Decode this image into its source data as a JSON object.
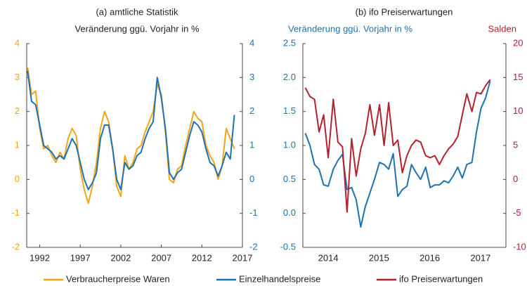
{
  "chart_data": [
    {
      "type": "line",
      "title": "(a) amtliche Statistik",
      "subtitle": "Veränderung ggü. Vorjahr in %",
      "x": [
        1990.5,
        1991,
        1991.5,
        1992,
        1992.5,
        1993,
        1993.5,
        1994,
        1994.5,
        1995,
        1995.5,
        1996,
        1996.5,
        1997,
        1997.5,
        1998,
        1998.5,
        1999,
        1999.5,
        2000,
        2000.5,
        2001,
        2001.5,
        2002,
        2002.5,
        2003,
        2003.5,
        2004,
        2004.5,
        2005,
        2005.5,
        2006,
        2006.5,
        2007,
        2007.5,
        2008,
        2008.5,
        2009,
        2009.5,
        2010,
        2010.5,
        2011,
        2011.5,
        2012,
        2012.5,
        2013,
        2013.5,
        2014,
        2014.5,
        2015,
        2015.5,
        2016
      ],
      "series": [
        {
          "name": "Verbraucherpreise Waren",
          "color": "#f2a516",
          "values": [
            3.3,
            2.5,
            2.6,
            1.5,
            0.9,
            1.0,
            0.7,
            0.5,
            0.8,
            0.6,
            1.2,
            1.5,
            1.3,
            0.3,
            -0.3,
            -0.7,
            -0.2,
            0.5,
            1.5,
            2.0,
            1.7,
            0.9,
            -0.2,
            -0.5,
            0.7,
            0.3,
            0.5,
            0.9,
            1.0,
            1.4,
            1.7,
            2.0,
            2.8,
            2.5,
            1.4,
            0.0,
            -0.1,
            0.3,
            0.4,
            1.0,
            1.5,
            2.0,
            1.8,
            1.7,
            1.0,
            0.7,
            0.5,
            0.0,
            0.4,
            1.5,
            1.2,
            0.9
          ]
        },
        {
          "name": "Einzelhandelspreise",
          "color": "#1f72b0",
          "axis": "y2",
          "values": [
            3.2,
            2.3,
            2.2,
            1.6,
            1.0,
            0.9,
            0.8,
            0.6,
            0.7,
            0.6,
            0.9,
            1.2,
            1.0,
            0.5,
            0.0,
            -0.3,
            -0.1,
            0.2,
            1.2,
            1.6,
            1.6,
            0.9,
            0.0,
            -0.3,
            0.5,
            0.3,
            0.4,
            0.7,
            0.8,
            1.2,
            1.5,
            1.7,
            3.0,
            2.4,
            1.5,
            0.2,
            0.0,
            0.2,
            0.3,
            0.8,
            1.3,
            1.7,
            1.6,
            1.4,
            0.9,
            0.5,
            0.4,
            0.1,
            0.4,
            0.8,
            0.6,
            1.9
          ]
        }
      ],
      "xlim": [
        1990.4,
        2017
      ],
      "xticks": [
        1992,
        1997,
        2002,
        2007,
        2012,
        2017
      ],
      "ylim": [
        -2,
        4
      ],
      "yticks": [
        -2,
        -1,
        0,
        1,
        2,
        3,
        4
      ],
      "ytick_color": "#f2a516",
      "y2lim": [
        -2,
        4
      ],
      "y2ticks": [
        -2,
        -1,
        0,
        1,
        2,
        3,
        4
      ],
      "y2tick_color": "#1f72b0"
    },
    {
      "type": "line",
      "title": "(b) ifo Preiserwartungen",
      "y_label": "Veränderung ggü. Vorjahr in %",
      "y2_label": "Salden",
      "x": [
        2014.05,
        2014.14,
        2014.23,
        2014.32,
        2014.41,
        2014.5,
        2014.6,
        2014.69,
        2014.78,
        2014.87,
        2014.96,
        2015.05,
        2015.14,
        2015.23,
        2015.32,
        2015.41,
        2015.51,
        2015.6,
        2015.69,
        2015.78,
        2015.87,
        2015.96,
        2016.05,
        2016.14,
        2016.23,
        2016.32,
        2016.42,
        2016.51,
        2016.6,
        2016.69,
        2016.78,
        2016.87,
        2016.96,
        2017.05,
        2017.14,
        2017.23,
        2017.33,
        2017.42,
        2017.51,
        2017.6,
        2017.69
      ],
      "series": [
        {
          "name": "Einzelhandelspreise",
          "color": "#1f72b0",
          "values": [
            1.18,
            1.0,
            0.72,
            0.65,
            0.42,
            0.4,
            0.65,
            0.78,
            0.87,
            0.35,
            0.38,
            0.2,
            -0.2,
            0.1,
            0.3,
            0.5,
            0.75,
            0.72,
            0.65,
            0.88,
            0.25,
            0.35,
            0.4,
            0.72,
            0.6,
            0.5,
            0.68,
            0.38,
            0.42,
            0.42,
            0.48,
            0.45,
            0.55,
            0.68,
            0.52,
            0.72,
            0.75,
            1.2,
            1.55,
            1.7,
            1.95
          ]
        },
        {
          "name": "ifo Preiserwartungen",
          "color": "#b5212e",
          "axis": "y2",
          "values": [
            13.5,
            12.2,
            11.8,
            7,
            9.5,
            3.2,
            11.8,
            5.5,
            4.8,
            -4.8,
            6,
            0.5,
            4.5,
            6.8,
            11,
            6.5,
            11,
            5,
            11.3,
            5,
            5.8,
            1,
            3.5,
            5,
            5.8,
            5.5,
            3.5,
            3.2,
            3.5,
            2.2,
            3.5,
            4.5,
            5.2,
            6.3,
            9.5,
            12.6,
            10,
            12.8,
            12.6,
            13.8,
            14.7
          ]
        }
      ],
      "xlim": [
        2014,
        2018
      ],
      "xticks": [
        {
          "value": 2014.5,
          "label": "2014"
        },
        {
          "value": 2015.5,
          "label": "2015"
        },
        {
          "value": 2016.5,
          "label": "2016"
        },
        {
          "value": 2017.5,
          "label": "2017"
        }
      ],
      "ylim": [
        -0.5,
        2.5
      ],
      "yticks": [
        -0.5,
        {
          "value": 0,
          "label": "0.0"
        },
        0.5,
        {
          "value": 1,
          "label": "1.0"
        },
        1.5,
        {
          "value": 2,
          "label": "2.0"
        },
        2.5
      ],
      "ytick_color": "#1f72b0",
      "y2lim": [
        -10,
        20
      ],
      "y2ticks": [
        -10,
        -5,
        0,
        5,
        10,
        15,
        20
      ],
      "y2tick_color": "#b5212e"
    }
  ]
}
